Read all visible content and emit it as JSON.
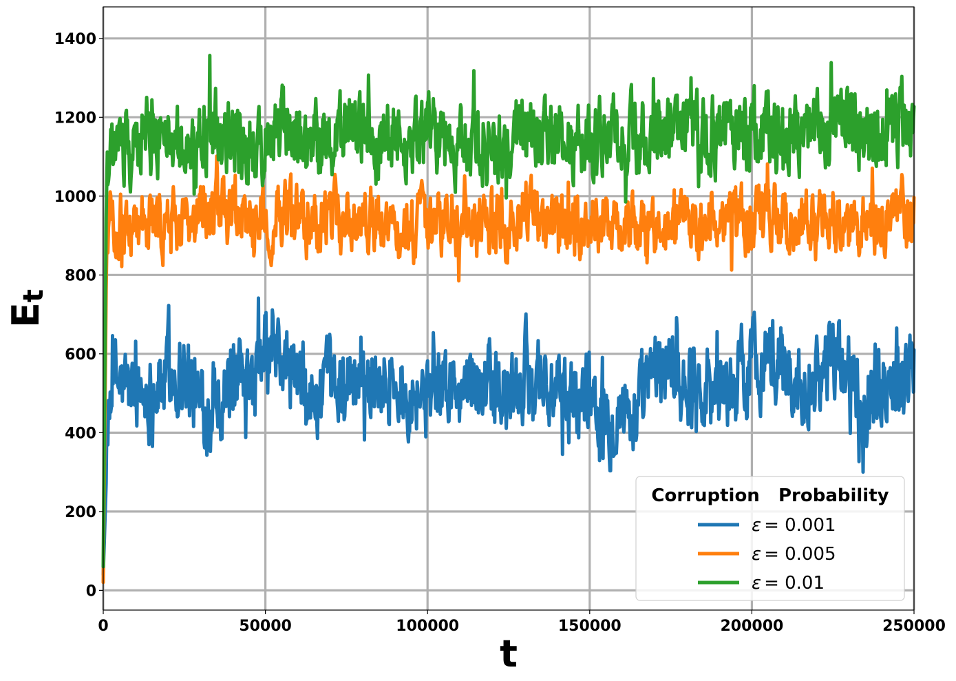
{
  "chart_data": {
    "type": "line",
    "xlabel": "t",
    "ylabel": "E",
    "ylabel_sub": "t",
    "xlim": [
      0,
      250000
    ],
    "ylim": [
      -50,
      1480
    ],
    "xticks": [
      0,
      50000,
      100000,
      150000,
      200000,
      250000
    ],
    "xtick_labels": [
      "0",
      "50000",
      "100000",
      "150000",
      "200000",
      "250000"
    ],
    "yticks": [
      0,
      200,
      400,
      600,
      800,
      1000,
      1200,
      1400
    ],
    "ytick_labels": [
      "0",
      "200",
      "400",
      "600",
      "800",
      "1000",
      "1200",
      "1400"
    ],
    "grid": true,
    "legend": {
      "title": "Corruption   Probability",
      "placement": "bottom-right"
    },
    "series": [
      {
        "name": "ε = 0.001",
        "symbol": "ε",
        "value_text": "= 0.001",
        "color": "#1f77b4",
        "x": [
          0,
          1000,
          2500,
          5000,
          10000,
          15000,
          20000,
          25000,
          30000,
          35000,
          40000,
          45000,
          50000,
          55000,
          60000,
          65000,
          70000,
          75000,
          80000,
          85000,
          90000,
          95000,
          100000,
          105000,
          110000,
          115000,
          120000,
          125000,
          130000,
          135000,
          140000,
          145000,
          150000,
          155000,
          160000,
          165000,
          170000,
          175000,
          180000,
          185000,
          190000,
          195000,
          200000,
          205000,
          210000,
          215000,
          220000,
          225000,
          230000,
          235000,
          240000,
          245000,
          250000
        ],
        "y": [
          40,
          300,
          540,
          520,
          500,
          510,
          550,
          560,
          460,
          500,
          520,
          480,
          600,
          580,
          520,
          470,
          500,
          540,
          520,
          560,
          500,
          540,
          480,
          520,
          500,
          560,
          500,
          480,
          540,
          560,
          470,
          480,
          520,
          440,
          470,
          440,
          560,
          580,
          520,
          540,
          500,
          530,
          580,
          600,
          560,
          520,
          560,
          580,
          540,
          500,
          520,
          560,
          580
        ],
        "noise": 95,
        "min": 300,
        "max": 790
      },
      {
        "name": "ε = 0.005",
        "symbol": "ε",
        "value_text": "= 0.005",
        "color": "#ff7f0e",
        "x": [
          0,
          1000,
          2500,
          5000,
          10000,
          15000,
          20000,
          25000,
          30000,
          35000,
          40000,
          45000,
          50000,
          55000,
          60000,
          65000,
          70000,
          75000,
          80000,
          85000,
          90000,
          95000,
          100000,
          105000,
          110000,
          115000,
          120000,
          125000,
          130000,
          135000,
          140000,
          145000,
          150000,
          155000,
          160000,
          165000,
          170000,
          175000,
          180000,
          185000,
          190000,
          195000,
          200000,
          205000,
          210000,
          215000,
          220000,
          225000,
          230000,
          235000,
          240000,
          245000,
          250000
        ],
        "y": [
          20,
          850,
          920,
          930,
          920,
          940,
          930,
          920,
          940,
          960,
          950,
          910,
          930,
          960,
          940,
          930,
          950,
          940,
          960,
          930,
          940,
          920,
          930,
          940,
          930,
          920,
          940,
          930,
          950,
          940,
          920,
          930,
          920,
          930,
          930,
          920,
          940,
          950,
          940,
          930,
          950,
          960,
          940,
          950,
          930,
          940,
          920,
          940,
          930,
          940,
          930,
          960,
          950
        ],
        "noise": 70,
        "min": 760,
        "max": 1130
      },
      {
        "name": "ε = 0.01",
        "symbol": "ε",
        "value_text": "= 0.01",
        "color": "#2ca02c",
        "x": [
          0,
          1000,
          2500,
          5000,
          10000,
          15000,
          20000,
          25000,
          30000,
          35000,
          40000,
          45000,
          50000,
          55000,
          60000,
          65000,
          70000,
          75000,
          80000,
          85000,
          90000,
          95000,
          100000,
          105000,
          110000,
          115000,
          120000,
          125000,
          130000,
          135000,
          140000,
          145000,
          150000,
          155000,
          160000,
          165000,
          170000,
          175000,
          180000,
          185000,
          190000,
          195000,
          200000,
          205000,
          210000,
          215000,
          220000,
          225000,
          230000,
          235000,
          240000,
          245000,
          250000
        ],
        "y": [
          60,
          1050,
          1120,
          1110,
          1130,
          1160,
          1140,
          1120,
          1150,
          1180,
          1160,
          1120,
          1150,
          1170,
          1140,
          1130,
          1160,
          1150,
          1170,
          1140,
          1150,
          1130,
          1160,
          1150,
          1140,
          1130,
          1150,
          1140,
          1160,
          1150,
          1130,
          1140,
          1130,
          1150,
          1160,
          1150,
          1170,
          1160,
          1150,
          1140,
          1160,
          1170,
          1160,
          1170,
          1150,
          1160,
          1150,
          1200,
          1170,
          1160,
          1150,
          1170,
          1180
        ],
        "noise": 85,
        "min": 970,
        "max": 1420
      }
    ]
  }
}
